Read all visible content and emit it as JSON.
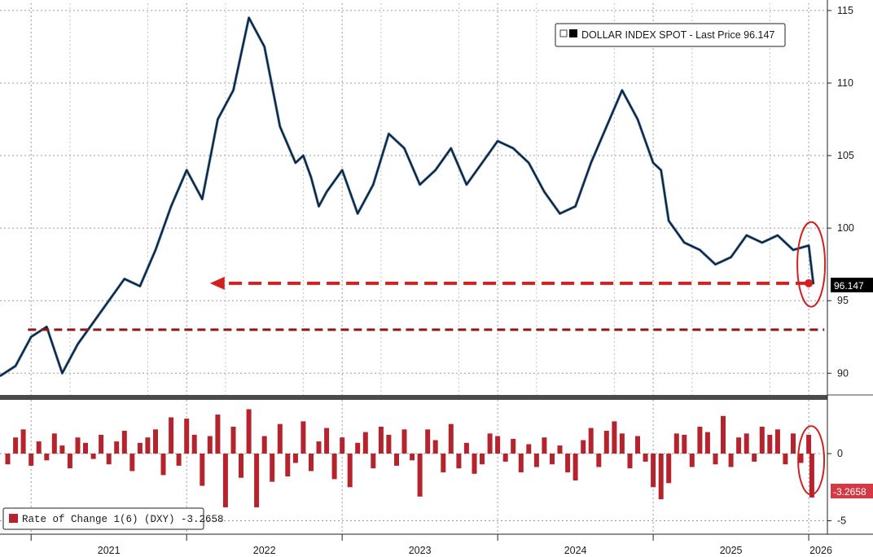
{
  "chart_data": [
    {
      "type": "line",
      "legend": {
        "label": "DOLLAR INDEX SPOT - Last Price 96.147",
        "placement": "top-right"
      },
      "last_value_label": "96.147",
      "ylim": [
        88.5,
        115.5
      ],
      "y_ticks": [
        "115",
        "110",
        "105",
        "100",
        "95",
        "90"
      ],
      "grid": true,
      "series": [
        {
          "color": "#1a1a1a",
          "x": [
            2020.8,
            2020.9,
            2021.0,
            2021.1,
            2021.2,
            2021.3,
            2021.4,
            2021.5,
            2021.6,
            2021.7,
            2021.8,
            2021.9,
            2022.0,
            2022.1,
            2022.2,
            2022.3,
            2022.4,
            2022.5,
            2022.6,
            2022.7,
            2022.75,
            2022.8,
            2022.85,
            2022.9,
            2023.0,
            2023.1,
            2023.2,
            2023.3,
            2023.4,
            2023.5,
            2023.6,
            2023.7,
            2023.8,
            2023.9,
            2024.0,
            2024.1,
            2024.2,
            2024.3,
            2024.4,
            2024.5,
            2024.6,
            2024.7,
            2024.8,
            2024.9,
            2025.0,
            2025.05,
            2025.1,
            2025.2,
            2025.3,
            2025.4,
            2025.5,
            2025.6,
            2025.7,
            2025.8,
            2025.9,
            2026.0,
            2026.03
          ],
          "y": [
            89.8,
            90.5,
            92.5,
            93.2,
            90.0,
            92.0,
            93.5,
            95.0,
            96.5,
            96.0,
            98.5,
            101.5,
            104.0,
            102.0,
            107.5,
            109.5,
            114.5,
            112.5,
            107.0,
            104.5,
            105.0,
            103.5,
            101.5,
            102.5,
            104.0,
            101.0,
            103.0,
            106.5,
            105.5,
            103.0,
            104.0,
            105.5,
            103.0,
            104.5,
            106.0,
            105.5,
            104.5,
            102.5,
            101.0,
            101.5,
            104.5,
            107.0,
            109.5,
            107.5,
            104.5,
            104.0,
            100.5,
            99.0,
            98.5,
            97.5,
            98.0,
            99.5,
            99.0,
            99.5,
            98.5,
            98.8,
            96.147
          ]
        }
      ],
      "annotations": [
        {
          "type": "arrow",
          "color": "#d22020",
          "from": [
            2026.0,
            96.2
          ],
          "to": [
            2022.15,
            96.2
          ]
        },
        {
          "type": "hline",
          "color": "#8b1a1a",
          "value": 93.0,
          "from_x": 2020.98,
          "to_x": 2026.1
        },
        {
          "type": "ellipse",
          "color": "#d22020",
          "around_x": 2026.0
        }
      ]
    },
    {
      "type": "bar",
      "legend": {
        "label": "Rate of Change 1(6) (DXY) -3.2658",
        "placement": "bottom-left"
      },
      "last_value_label": "-3.2658",
      "color": "#b5232d",
      "ylim": [
        -6.0,
        4.0
      ],
      "y_ticks": [
        "0",
        "-5"
      ],
      "grid": true,
      "x": [
        2020.85,
        2020.9,
        2020.95,
        2021.0,
        2021.05,
        2021.1,
        2021.15,
        2021.2,
        2021.25,
        2021.3,
        2021.35,
        2021.4,
        2021.45,
        2021.5,
        2021.55,
        2021.6,
        2021.65,
        2021.7,
        2021.75,
        2021.8,
        2021.85,
        2021.9,
        2021.95,
        2022.0,
        2022.05,
        2022.1,
        2022.15,
        2022.2,
        2022.25,
        2022.3,
        2022.35,
        2022.4,
        2022.45,
        2022.5,
        2022.55,
        2022.6,
        2022.65,
        2022.7,
        2022.75,
        2022.8,
        2022.85,
        2022.9,
        2022.95,
        2023.0,
        2023.05,
        2023.1,
        2023.15,
        2023.2,
        2023.25,
        2023.3,
        2023.35,
        2023.4,
        2023.45,
        2023.5,
        2023.55,
        2023.6,
        2023.65,
        2023.7,
        2023.75,
        2023.8,
        2023.85,
        2023.9,
        2023.95,
        2024.0,
        2024.05,
        2024.1,
        2024.15,
        2024.2,
        2024.25,
        2024.3,
        2024.35,
        2024.4,
        2024.45,
        2024.5,
        2024.55,
        2024.6,
        2024.65,
        2024.7,
        2024.75,
        2024.8,
        2024.85,
        2024.9,
        2024.95,
        2025.0,
        2025.05,
        2025.1,
        2025.15,
        2025.2,
        2025.25,
        2025.3,
        2025.35,
        2025.4,
        2025.45,
        2025.5,
        2025.55,
        2025.6,
        2025.65,
        2025.7,
        2025.75,
        2025.8,
        2025.85,
        2025.9,
        2025.95,
        2026.0,
        2026.02
      ],
      "values": [
        -0.8,
        1.2,
        1.8,
        -0.9,
        0.9,
        -0.5,
        1.5,
        0.6,
        -1.1,
        1.2,
        0.8,
        -0.4,
        1.4,
        -0.8,
        0.9,
        1.7,
        -1.3,
        0.8,
        1.2,
        1.8,
        -1.6,
        2.7,
        -0.9,
        2.6,
        1.4,
        -2.4,
        1.3,
        2.9,
        -4.0,
        2.0,
        -1.8,
        3.3,
        -4.0,
        1.3,
        -2.1,
        2.2,
        -1.7,
        -0.7,
        2.4,
        -1.3,
        0.9,
        1.9,
        -1.9,
        1.2,
        -2.5,
        0.8,
        1.6,
        -1.1,
        2.0,
        1.4,
        -0.9,
        1.8,
        -0.5,
        -3.2,
        1.8,
        1.0,
        -1.4,
        2.2,
        -1.1,
        0.8,
        -1.5,
        -0.8,
        1.5,
        1.3,
        -0.6,
        1.1,
        -1.4,
        0.7,
        -1.0,
        1.2,
        -0.8,
        0.6,
        -1.4,
        -2.0,
        1.0,
        1.9,
        -1.0,
        1.7,
        2.4,
        1.5,
        -1.1,
        1.3,
        -0.6,
        -2.5,
        -3.4,
        -2.2,
        1.5,
        1.4,
        -1.0,
        2.0,
        1.6,
        -0.8,
        2.8,
        -1.0,
        1.2,
        1.5,
        -0.6,
        2.0,
        1.4,
        1.8,
        -0.8,
        1.5,
        -0.7,
        1.4,
        -3.2658
      ],
      "annotations": [
        {
          "type": "ellipse",
          "color": "#d22020",
          "around_x": 2026.0
        }
      ]
    }
  ],
  "x_axis": {
    "xlim": [
      2020.8,
      2026.12
    ],
    "tick_labels": [
      "2021",
      "2022",
      "2023",
      "2024",
      "2025",
      "2026"
    ]
  }
}
